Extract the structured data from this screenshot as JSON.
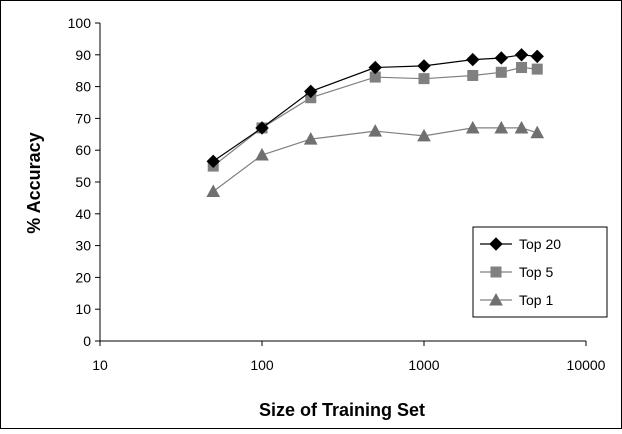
{
  "chart_data": {
    "type": "line",
    "title": "",
    "xlabel": "Size of Training Set",
    "ylabel": "% Accuracy",
    "xscale": "log",
    "xlim": [
      10,
      10000
    ],
    "ylim": [
      0,
      100
    ],
    "xticks": [
      10,
      100,
      1000,
      10000
    ],
    "yticks": [
      0,
      10,
      20,
      30,
      40,
      50,
      60,
      70,
      80,
      90,
      100
    ],
    "grid": false,
    "legend_position": "bottom-right",
    "x": [
      50,
      100,
      200,
      500,
      1000,
      2000,
      3000,
      4000,
      5000
    ],
    "series": [
      {
        "name": "Top 20",
        "marker": "diamond",
        "line_color": "#000000",
        "marker_color": "#000000",
        "values": [
          56.5,
          67.0,
          78.5,
          86.0,
          86.5,
          88.5,
          89.0,
          90.0,
          89.5
        ]
      },
      {
        "name": "Top 5",
        "marker": "square",
        "line_color": "#808080",
        "marker_color": "#808080",
        "values": [
          55.0,
          67.0,
          76.5,
          83.0,
          82.5,
          83.5,
          84.5,
          86.0,
          85.5
        ]
      },
      {
        "name": "Top 1",
        "marker": "triangle",
        "line_color": "#808080",
        "marker_color": "#707070",
        "values": [
          47.0,
          58.5,
          63.5,
          66.0,
          64.5,
          67.0,
          67.0,
          67.0,
          65.5
        ]
      }
    ]
  }
}
